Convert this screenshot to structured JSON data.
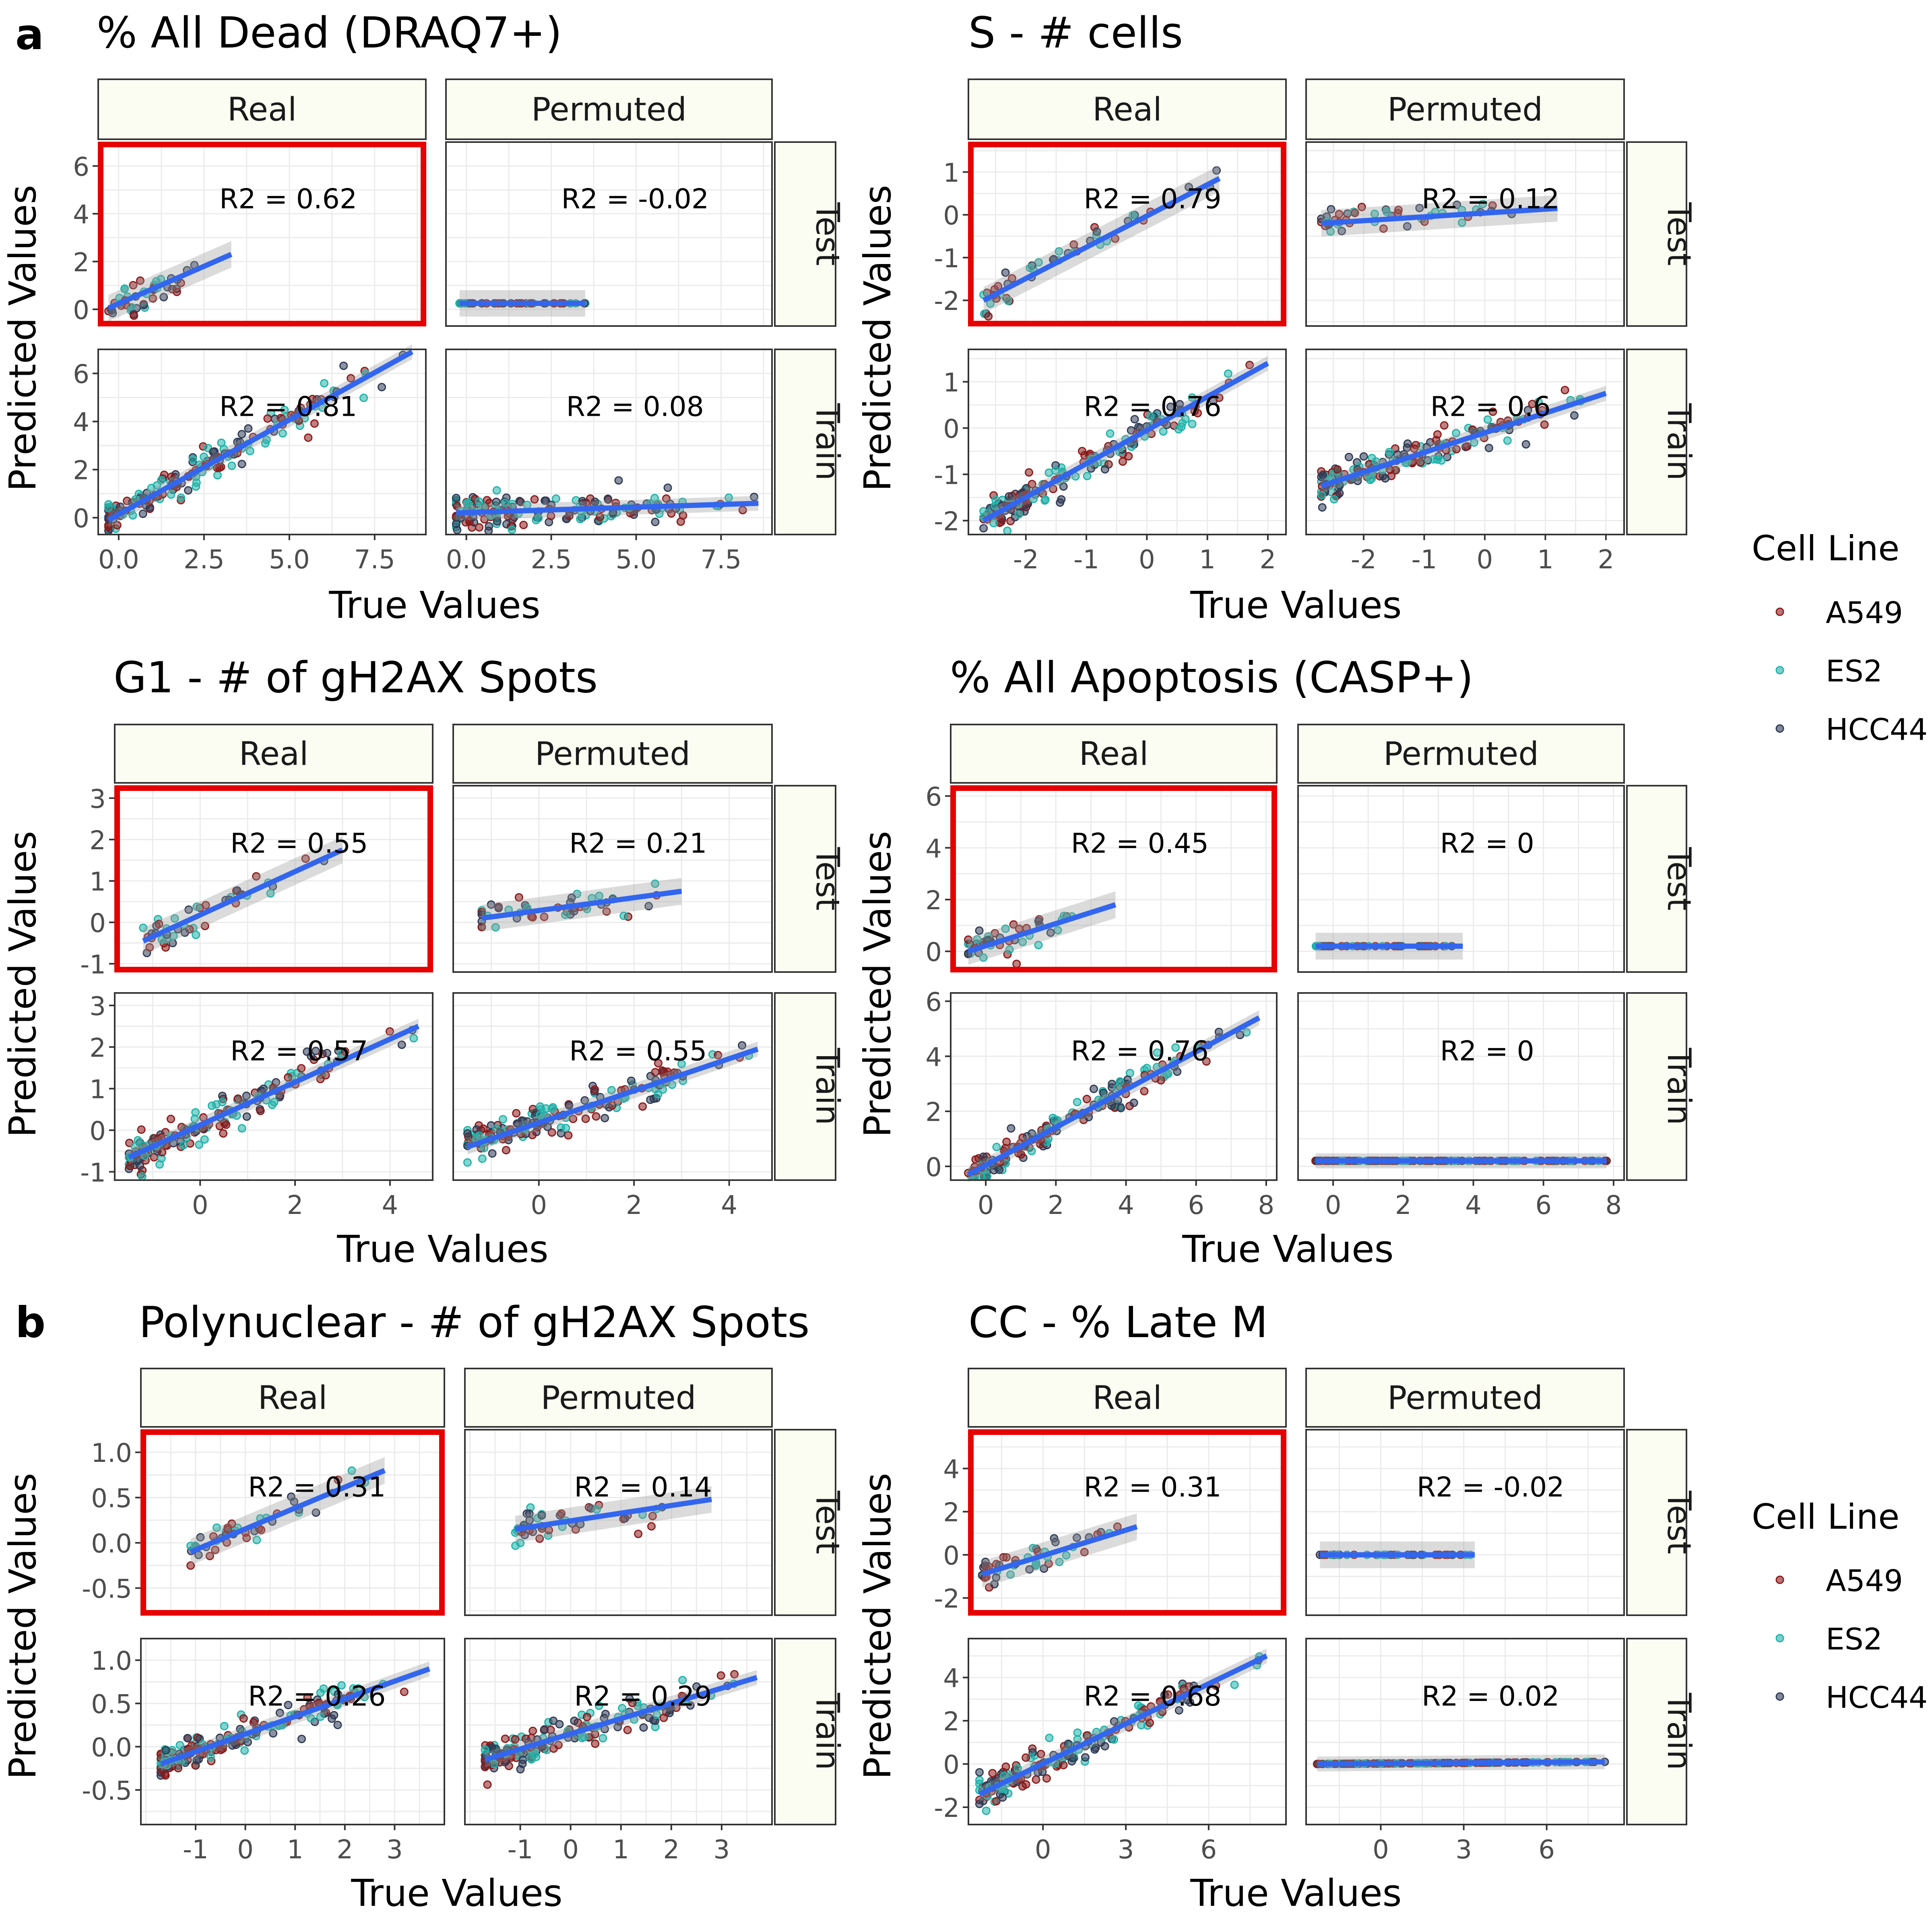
{
  "figure": {
    "panel_labels": [
      "a",
      "b"
    ],
    "legend_title": "Cell Line",
    "legend_items": [
      {
        "label": "A549",
        "color": "#8B1A1A"
      },
      {
        "label": "ES2",
        "color": "#20B2AA"
      },
      {
        "label": "HCC44",
        "color": "#2F3B55"
      }
    ],
    "fit_color": "#3366EE",
    "strip_fill": "#FBFDF2",
    "highlight_color": "#E60000",
    "col_strips": [
      "Real",
      "Permuted"
    ],
    "row_strips": [
      "Test",
      "Train"
    ]
  },
  "chart_data": [
    {
      "type": "scatter",
      "title": "% All Dead (DRAQ7+)",
      "xlabel": "True Values",
      "ylabel": "Predicted Values",
      "xlim": [
        -0.6,
        9.0
      ],
      "xticks": [
        0,
        2.5,
        5,
        7.5
      ],
      "xtick_labels": [
        "0.0",
        "2.5",
        "5.0",
        "7.5"
      ],
      "rows": [
        {
          "ylim": [
            -0.7,
            7.0
          ],
          "yticks": [
            0,
            2,
            4,
            6
          ],
          "ytick_labels": [
            "0",
            "2",
            "4",
            "6"
          ]
        },
        {
          "ylim": [
            -0.7,
            7.0
          ],
          "yticks": [
            0,
            2,
            4,
            6
          ],
          "ytick_labels": [
            "0",
            "2",
            "4",
            "6"
          ]
        }
      ],
      "panels": {
        "Real-Test": {
          "r2": "R2 = 0.62",
          "fit": [
            [
              -0.3,
              0.05
            ],
            [
              3.3,
              2.3
            ]
          ]
        },
        "Permuted-Test": {
          "r2": "R2 = -0.02",
          "fit": [
            [
              -0.2,
              0.25
            ],
            [
              3.5,
              0.25
            ]
          ]
        },
        "Real-Train": {
          "r2": "R2 = 0.81",
          "fit": [
            [
              -0.3,
              -0.1
            ],
            [
              8.6,
              6.9
            ]
          ]
        },
        "Permuted-Train": {
          "r2": "R2 = 0.08",
          "fit": [
            [
              -0.3,
              0.2
            ],
            [
              8.6,
              0.6
            ]
          ]
        }
      }
    },
    {
      "type": "scatter",
      "title": "S - # cells",
      "xlabel": "True Values",
      "ylabel": "Predicted Values",
      "xlim": [
        -2.95,
        2.3
      ],
      "xticks": [
        -2,
        -1,
        0,
        1,
        2
      ],
      "xtick_labels": [
        "-2",
        "-1",
        "0",
        "1",
        "2"
      ],
      "rows": [
        {
          "ylim": [
            -2.6,
            1.7
          ],
          "yticks": [
            -2,
            -1,
            0,
            1
          ],
          "ytick_labels": [
            "-2",
            "-1",
            "0",
            "1"
          ]
        },
        {
          "ylim": [
            -2.3,
            1.7
          ],
          "yticks": [
            -2,
            -1,
            0,
            1
          ],
          "ytick_labels": [
            "-2",
            "-1",
            "0",
            "1"
          ]
        }
      ],
      "panels": {
        "Real-Test": {
          "r2": "R2 = 0.79",
          "fit": [
            [
              -2.7,
              -2.0
            ],
            [
              1.2,
              0.85
            ]
          ]
        },
        "Permuted-Test": {
          "r2": "R2 = 0.12",
          "fit": [
            [
              -2.7,
              -0.2
            ],
            [
              1.2,
              0.15
            ]
          ]
        },
        "Real-Train": {
          "r2": "R2 = 0.76",
          "fit": [
            [
              -2.7,
              -2.0
            ],
            [
              2.0,
              1.4
            ]
          ]
        },
        "Permuted-Train": {
          "r2": "R2 = 0.6",
          "fit": [
            [
              -2.7,
              -1.25
            ],
            [
              2.0,
              0.75
            ]
          ]
        }
      }
    },
    {
      "type": "scatter",
      "title": "G1 - # of gH2AX Spots",
      "xlabel": "True Values",
      "ylabel": "Predicted Values",
      "xlim": [
        -1.8,
        4.9
      ],
      "xticks": [
        0,
        2,
        4
      ],
      "xtick_labels": [
        "0",
        "2",
        "4"
      ],
      "rows": [
        {
          "ylim": [
            -1.2,
            3.3
          ],
          "yticks": [
            -1,
            0,
            1,
            2,
            3
          ],
          "ytick_labels": [
            "-1",
            "0",
            "1",
            "2",
            "3"
          ]
        },
        {
          "ylim": [
            -1.2,
            3.3
          ],
          "yticks": [
            -1,
            0,
            1,
            2,
            3
          ],
          "ytick_labels": [
            "-1",
            "0",
            "1",
            "2",
            "3"
          ]
        }
      ],
      "panels": {
        "Real-Test": {
          "r2": "R2 = 0.55",
          "fit": [
            [
              -1.2,
              -0.45
            ],
            [
              3.0,
              1.75
            ]
          ]
        },
        "Permuted-Test": {
          "r2": "R2 = 0.21",
          "fit": [
            [
              -1.2,
              0.1
            ],
            [
              3.0,
              0.75
            ]
          ]
        },
        "Real-Train": {
          "r2": "R2 = 0.57",
          "fit": [
            [
              -1.5,
              -0.65
            ],
            [
              4.6,
              2.5
            ]
          ]
        },
        "Permuted-Train": {
          "r2": "R2 = 0.55",
          "fit": [
            [
              -1.5,
              -0.4
            ],
            [
              4.6,
              1.95
            ]
          ]
        }
      }
    },
    {
      "type": "scatter",
      "title": "% All Apoptosis (CASP+)",
      "xlabel": "True Values",
      "ylabel": "Predicted Values",
      "xlim": [
        -1.0,
        8.3
      ],
      "xticks": [
        0,
        2,
        4,
        6,
        8
      ],
      "xtick_labels": [
        "0",
        "2",
        "4",
        "6",
        "8"
      ],
      "rows": [
        {
          "ylim": [
            -0.8,
            6.4
          ],
          "yticks": [
            0,
            2,
            4,
            6
          ],
          "ytick_labels": [
            "0",
            "2",
            "4",
            "6"
          ]
        },
        {
          "ylim": [
            -0.5,
            6.3
          ],
          "yticks": [
            0,
            2,
            4,
            6
          ],
          "ytick_labels": [
            "0",
            "2",
            "4",
            "6"
          ]
        }
      ],
      "panels": {
        "Real-Test": {
          "r2": "R2 = 0.45",
          "fit": [
            [
              -0.5,
              0.0
            ],
            [
              3.7,
              1.8
            ]
          ]
        },
        "Permuted-Test": {
          "r2": "R2 = 0",
          "fit": [
            [
              -0.5,
              0.2
            ],
            [
              3.7,
              0.2
            ]
          ]
        },
        "Real-Train": {
          "r2": "R2 = 0.76",
          "fit": [
            [
              -0.5,
              -0.3
            ],
            [
              7.8,
              5.4
            ]
          ]
        },
        "Permuted-Train": {
          "r2": "R2 = 0",
          "fit": [
            [
              -0.5,
              0.2
            ],
            [
              7.8,
              0.2
            ]
          ]
        }
      }
    },
    {
      "type": "scatter",
      "title": "Polynuclear - # of gH2AX Spots",
      "xlabel": "True Values",
      "ylabel": "Predicted Values",
      "xlim": [
        -2.1,
        4.0
      ],
      "xticks": [
        -1,
        0,
        1,
        2,
        3
      ],
      "xtick_labels": [
        "-1",
        "0",
        "1",
        "2",
        "3"
      ],
      "rows": [
        {
          "ylim": [
            -0.8,
            1.25
          ],
          "yticks": [
            -0.5,
            0,
            0.5,
            1.0
          ],
          "ytick_labels": [
            "-0.5",
            "0.0",
            "0.5",
            "1.0"
          ]
        },
        {
          "ylim": [
            -0.9,
            1.25
          ],
          "yticks": [
            -0.5,
            0,
            0.5,
            1.0
          ],
          "ytick_labels": [
            "-0.5",
            "0.0",
            "0.5",
            "1.0"
          ]
        }
      ],
      "panels": {
        "Real-Test": {
          "r2": "R2 = 0.31",
          "fit": [
            [
              -1.1,
              -0.1
            ],
            [
              2.8,
              0.8
            ]
          ]
        },
        "Permuted-Test": {
          "r2": "R2 = 0.14",
          "fit": [
            [
              -1.1,
              0.15
            ],
            [
              2.8,
              0.48
            ]
          ]
        },
        "Real-Train": {
          "r2": "R2 = 0.26",
          "fit": [
            [
              -1.7,
              -0.2
            ],
            [
              3.7,
              0.9
            ]
          ]
        },
        "Permuted-Train": {
          "r2": "R2 = 0.29",
          "fit": [
            [
              -1.7,
              -0.15
            ],
            [
              3.7,
              0.8
            ]
          ]
        }
      }
    },
    {
      "type": "scatter",
      "title": "CC - % Late M",
      "xlabel": "True Values",
      "ylabel": "Predicted Values",
      "xlim": [
        -2.7,
        8.8
      ],
      "xticks": [
        0,
        3,
        6
      ],
      "xtick_labels": [
        "0",
        "3",
        "6"
      ],
      "rows": [
        {
          "ylim": [
            -2.8,
            5.8
          ],
          "yticks": [
            -2,
            0,
            2,
            4
          ],
          "ytick_labels": [
            "-2",
            "0",
            "2",
            "4"
          ]
        },
        {
          "ylim": [
            -2.8,
            5.8
          ],
          "yticks": [
            -2,
            0,
            2,
            4
          ],
          "ytick_labels": [
            "-2",
            "0",
            "2",
            "4"
          ]
        }
      ],
      "panels": {
        "Real-Test": {
          "r2": "R2 = 0.31",
          "fit": [
            [
              -2.2,
              -0.9
            ],
            [
              3.4,
              1.3
            ]
          ]
        },
        "Permuted-Test": {
          "r2": "R2 = -0.02",
          "fit": [
            [
              -2.2,
              0.0
            ],
            [
              3.4,
              0.0
            ]
          ]
        },
        "Real-Train": {
          "r2": "R2 = 0.68",
          "fit": [
            [
              -2.3,
              -1.4
            ],
            [
              8.1,
              5.0
            ]
          ]
        },
        "Permuted-Train": {
          "r2": "R2 = 0.02",
          "fit": [
            [
              -2.3,
              0.0
            ],
            [
              8.1,
              0.1
            ]
          ]
        }
      }
    }
  ]
}
